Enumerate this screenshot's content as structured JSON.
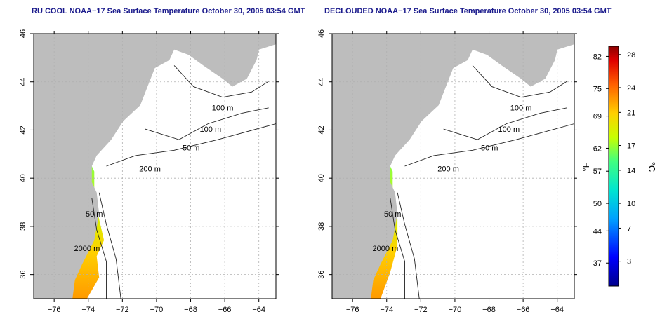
{
  "panels": [
    {
      "title": "RU COOL NOAA−17 Sea Surface Temperature October 30, 2005 03:54 GMT",
      "coverage": "full"
    },
    {
      "title": "DECLOUDED NOAA−17 Sea Surface Temperature October 30, 2005 03:54 GMT",
      "coverage": "declouded"
    }
  ],
  "colors": {
    "land": "#bdbdbd",
    "water": "#ffffff",
    "contour": "#222222",
    "grid": "#b0b0b0",
    "title": "#1a1a8c"
  },
  "chart_data": {
    "type": "heatmap",
    "map_extent": {
      "lon": [
        -77.2,
        -63
      ],
      "lat": [
        35,
        46
      ]
    },
    "x_ticks": [
      -76,
      -74,
      -72,
      -70,
      -68,
      -66,
      -64
    ],
    "x_tick_labels": [
      "−76",
      "−74",
      "−72",
      "−70",
      "−68",
      "−66",
      "−64"
    ],
    "y_ticks": [
      36,
      38,
      40,
      42,
      44,
      46
    ],
    "y_tick_labels": [
      "36",
      "38",
      "40",
      "42",
      "44",
      "46"
    ],
    "grid": true,
    "contour_labels": [
      "100 m",
      "100 m",
      "50 m",
      "200 m",
      "50 m",
      "2000 m"
    ],
    "colorbar": {
      "range_c": [
        0,
        29
      ],
      "fahrenheit_ticks": [
        82,
        75,
        69,
        62,
        57,
        50,
        44,
        37
      ],
      "celsius_ticks": [
        28,
        24,
        21,
        17,
        14,
        10,
        7,
        3
      ],
      "fahrenheit_label": "°F",
      "celsius_label": "°C"
    }
  }
}
